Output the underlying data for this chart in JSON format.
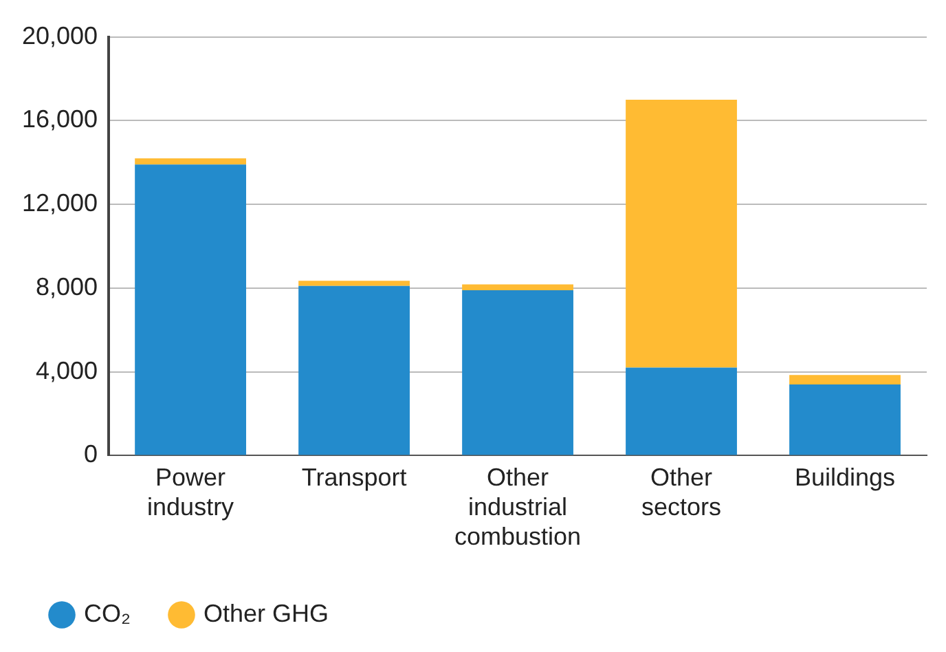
{
  "chart_data": {
    "type": "bar",
    "stacked": true,
    "categories": [
      "Power industry",
      "Transport",
      "Other industrial combustion",
      "Other sectors",
      "Buildings"
    ],
    "series": [
      {
        "name": "CO₂",
        "color": "#238bcc",
        "values": [
          13900,
          8100,
          7900,
          4200,
          3400
        ]
      },
      {
        "name": "Other GHG",
        "color": "#ffbb33",
        "values": [
          300,
          250,
          280,
          12800,
          450
        ]
      }
    ],
    "ylim": [
      0,
      20000
    ],
    "yticks": [
      {
        "value": 0,
        "label": "0"
      },
      {
        "value": 4000,
        "label": "4,000"
      },
      {
        "value": 8000,
        "label": "8,000"
      },
      {
        "value": 12000,
        "label": "12,000"
      },
      {
        "value": 16000,
        "label": "16,000"
      },
      {
        "value": 20000,
        "label": "20,000"
      }
    ],
    "grid": "y",
    "legend": "bottom left"
  }
}
